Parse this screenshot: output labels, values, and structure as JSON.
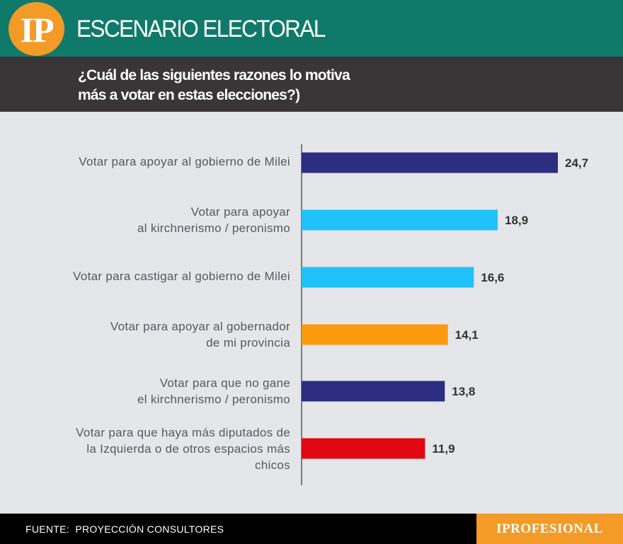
{
  "header": {
    "logo": "IP",
    "title": "ESCENARIO ELECTORAL",
    "subtitle_line1": "¿Cuál de las siguientes razones lo motiva",
    "subtitle_line2": "más a votar en estas elecciones?)"
  },
  "chart_data": {
    "type": "bar",
    "orientation": "horizontal",
    "title": "¿Cuál de las siguientes razones lo motiva más a votar en estas elecciones?)",
    "categories": [
      [
        "Votar para apoyar al gobierno de Milei"
      ],
      [
        "Votar para apoyar",
        "al kirchnerismo / peronismo"
      ],
      [
        "Votar para castigar al gobierno de Milei"
      ],
      [
        "Votar para apoyar al gobernador",
        "de mi provincia"
      ],
      [
        "Votar para que no gane",
        "el kirchnerismo / peronismo"
      ],
      [
        "Votar para que haya más diputados de",
        "la Izquierda o de otros espacios más",
        "chicos"
      ]
    ],
    "values": [
      24.7,
      18.9,
      16.6,
      14.1,
      13.8,
      11.9
    ],
    "value_labels": [
      "24,7",
      "18,9",
      "16,6",
      "14,1",
      "13,8",
      "11,9"
    ],
    "colors": [
      "#2d2d82",
      "#1fc3fa",
      "#1fc3fa",
      "#fc9a0e",
      "#2d2d82",
      "#e30613"
    ],
    "xlim": [
      0,
      30
    ],
    "grid": false,
    "legend": "none"
  },
  "footer": {
    "source": "FUENTE:  PROYECCIÓN CONSULTORES",
    "brand": "IPROFESIONAL"
  }
}
